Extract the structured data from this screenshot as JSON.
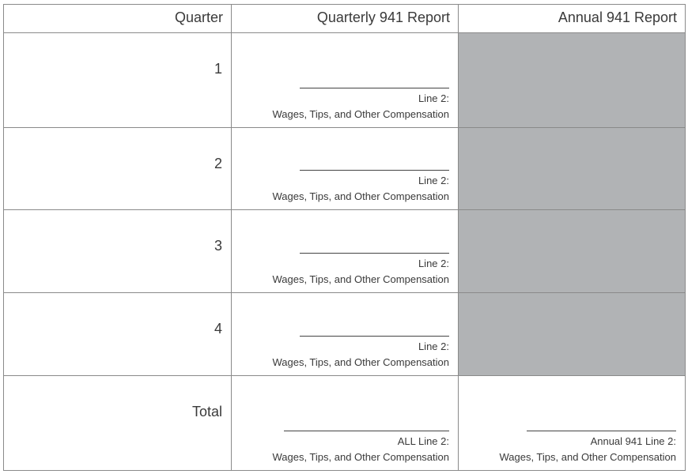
{
  "table": {
    "header": [
      "Quarter",
      "Quarterly 941 Report",
      "Annual 941 Report"
    ],
    "rows": [
      {
        "quarter": "1",
        "quarterly": {
          "line": "Line 2:",
          "caption": "Wages, Tips, and Other Compensation"
        }
      },
      {
        "quarter": "2",
        "quarterly": {
          "line": "Line 2:",
          "caption": "Wages, Tips, and Other Compensation"
        }
      },
      {
        "quarter": "3",
        "quarterly": {
          "line": "Line 2:",
          "caption": "Wages, Tips, and Other Compensation"
        }
      },
      {
        "quarter": "4",
        "quarterly": {
          "line": "Line 2:",
          "caption": "Wages, Tips, and Other Compensation"
        }
      }
    ],
    "total": {
      "quarter": "Total",
      "quarterly": {
        "line": "ALL Line 2:",
        "caption": "Wages, Tips, and Other Compensation"
      },
      "annual": {
        "line": "Annual 941 Line 2:",
        "caption": "Wages, Tips, and Other Compensation"
      }
    }
  }
}
